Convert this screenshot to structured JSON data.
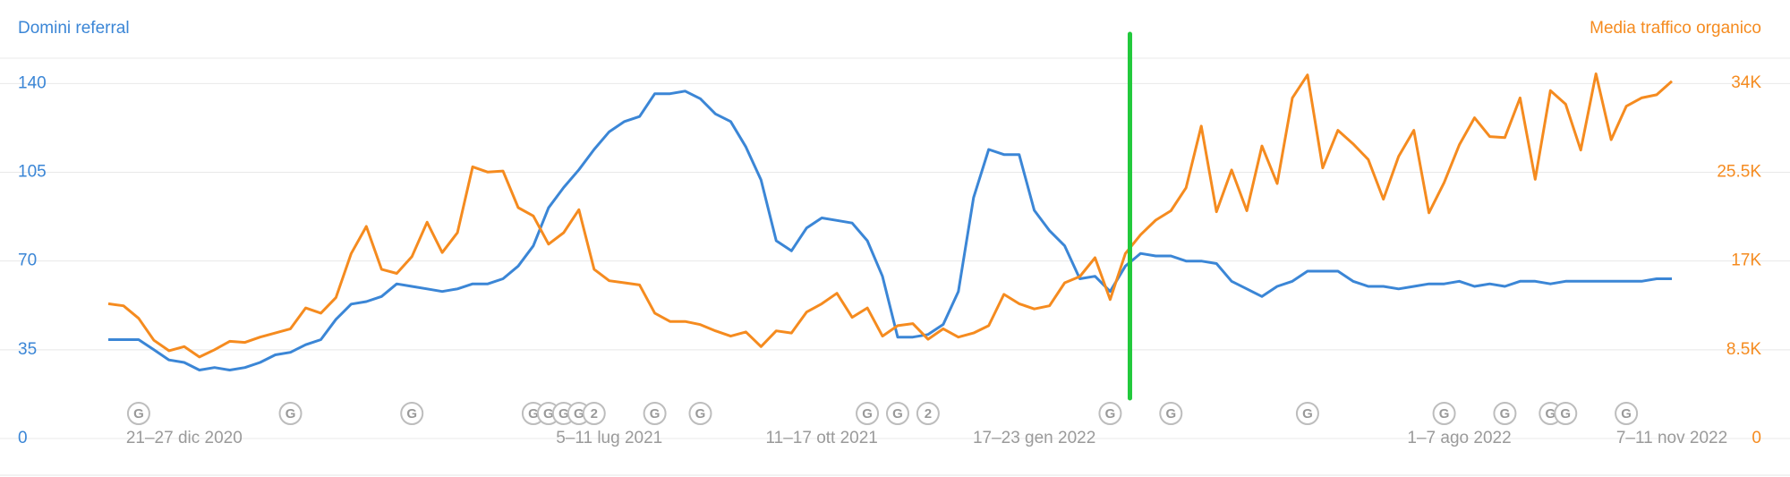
{
  "chart_data": {
    "type": "line",
    "categories": [
      null,
      null,
      null,
      null,
      null,
      "21–27 dic 2020",
      null,
      null,
      null,
      null,
      null,
      null,
      null,
      null,
      null,
      null,
      null,
      null,
      null,
      null,
      null,
      null,
      null,
      null,
      null,
      null,
      null,
      null,
      null,
      null,
      null,
      null,
      null,
      "5–11 lug 2021",
      null,
      null,
      null,
      null,
      null,
      null,
      null,
      null,
      null,
      null,
      null,
      null,
      null,
      "11–17 ott 2021",
      null,
      null,
      null,
      null,
      null,
      null,
      null,
      null,
      null,
      null,
      null,
      null,
      null,
      "17–23 gen 2022",
      null,
      null,
      null,
      null,
      null,
      null,
      null,
      null,
      null,
      null,
      null,
      null,
      null,
      null,
      null,
      null,
      null,
      null,
      null,
      null,
      null,
      null,
      null,
      null,
      null,
      null,
      null,
      "1–7 ago 2022",
      null,
      null,
      null,
      null,
      null,
      null,
      null,
      null,
      null,
      null,
      null,
      null,
      null,
      "7–11 nov 2022"
    ],
    "series": [
      {
        "name": "Domini referral",
        "color": "#3b86d6",
        "values": [
          39,
          39,
          39,
          35,
          31,
          30,
          27,
          28,
          27,
          28,
          30,
          33,
          34,
          37,
          39,
          47,
          53,
          54,
          56,
          61,
          60,
          59,
          58,
          59,
          61,
          61,
          63,
          68,
          76,
          91,
          99,
          106,
          114,
          121,
          125,
          127,
          136,
          136,
          137,
          134,
          128,
          125,
          115,
          102,
          78,
          74,
          83,
          87,
          86,
          85,
          78,
          64,
          40,
          40,
          41,
          45,
          58,
          95,
          114,
          112,
          112,
          90,
          82,
          76,
          63,
          64,
          58,
          68,
          73,
          72,
          72,
          70,
          70,
          69,
          62,
          59,
          56,
          60,
          62,
          66,
          66,
          66,
          62,
          60,
          60,
          59,
          60,
          61,
          61,
          62,
          60,
          61,
          60,
          62,
          62,
          61,
          62,
          62,
          62,
          62,
          62,
          62,
          63,
          63
        ]
      },
      {
        "name": "Media traffico organico",
        "color": "#f58b1f",
        "axis": "y2",
        "values": [
          12900,
          12700,
          11500,
          9400,
          8400,
          8800,
          7800,
          8500,
          9300,
          9200,
          9700,
          10100,
          10500,
          12500,
          12000,
          13500,
          17700,
          20300,
          16200,
          15800,
          17400,
          20700,
          17800,
          19700,
          26000,
          25500,
          25600,
          22100,
          21300,
          18600,
          19700,
          21900,
          16200,
          15100,
          14900,
          14700,
          12000,
          11200,
          11200,
          10900,
          10300,
          9800,
          10200,
          8800,
          10300,
          10100,
          12100,
          12900,
          13900,
          11600,
          12500,
          9800,
          10800,
          11000,
          9500,
          10500,
          9700,
          10100,
          10800,
          13800,
          12900,
          12400,
          12700,
          14900,
          15500,
          17300,
          13300,
          17700,
          19500,
          20900,
          21800,
          24000,
          29900,
          21700,
          25700,
          21800,
          28000,
          24400,
          32600,
          34800,
          25900,
          29500,
          28200,
          26700,
          22900,
          27000,
          29500,
          21600,
          24500,
          28100,
          30700,
          28900,
          28800,
          32600,
          24800,
          33300,
          32000,
          27600,
          34900,
          28600,
          31800,
          32600,
          32900,
          34200
        ]
      }
    ],
    "ylim": [
      0,
      150
    ],
    "yticks": [
      0,
      35,
      70,
      105,
      140
    ],
    "y2lim": [
      0,
      36400
    ],
    "y2ticks": [
      0,
      {
        "value": 8500,
        "label": "8.5K"
      },
      {
        "value": 17000,
        "label": "17K"
      },
      {
        "value": 25500,
        "label": "25.5K"
      },
      {
        "value": 34000,
        "label": "34K"
      }
    ],
    "grid": true,
    "events": [
      {
        "x": 2,
        "label": "G"
      },
      {
        "x": 12,
        "label": "G"
      },
      {
        "x": 20,
        "label": "G"
      },
      {
        "x": 28,
        "label": "G"
      },
      {
        "x": 29,
        "label": "G"
      },
      {
        "x": 30,
        "label": "G"
      },
      {
        "x": 31,
        "label": "G"
      },
      {
        "x": 32,
        "label": "2"
      },
      {
        "x": 36,
        "label": "G"
      },
      {
        "x": 39,
        "label": "G"
      },
      {
        "x": 50,
        "label": "G"
      },
      {
        "x": 52,
        "label": "G"
      },
      {
        "x": 54,
        "label": "2"
      },
      {
        "x": 66,
        "label": "G"
      },
      {
        "x": 70,
        "label": "G"
      },
      {
        "x": 79,
        "label": "G"
      },
      {
        "x": 88,
        "label": "G"
      },
      {
        "x": 92,
        "label": "G"
      },
      {
        "x": 95,
        "label": "G"
      },
      {
        "x": 96,
        "label": "G"
      },
      {
        "x": 100,
        "label": "G"
      }
    ],
    "vline": {
      "x": 67.3,
      "color": "#22c93c"
    }
  }
}
